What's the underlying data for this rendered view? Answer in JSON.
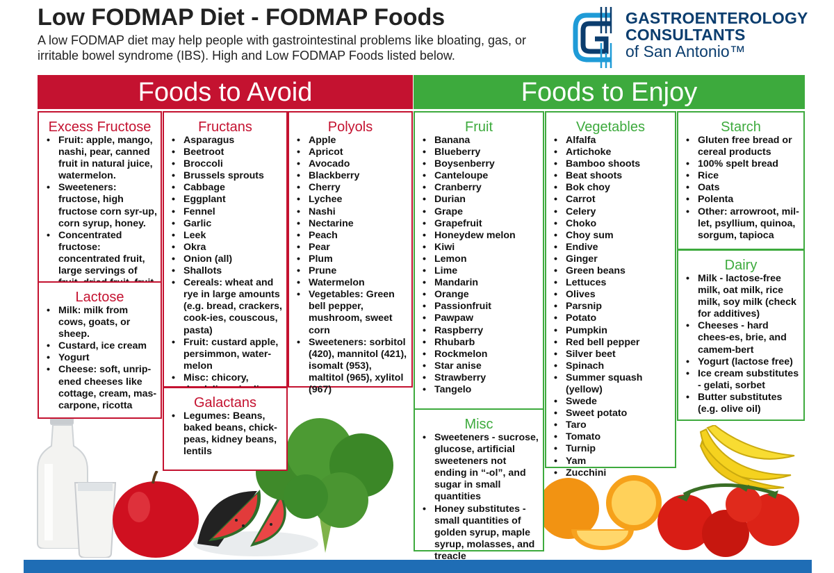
{
  "header": {
    "title": "Low FODMAP Diet - FODMAP Foods",
    "subtitle": "A low FODMAP diet may help people with gastrointestinal problems like bloating, gas, or irritable bowel syndrome (IBS). High and Low FODMAP Foods listed below."
  },
  "logo": {
    "line1": "GASTROENTEROLOGY",
    "line2": "CONSULTANTS",
    "line3": "of San Antonio™"
  },
  "avoid": {
    "heading": "Foods to Avoid",
    "fructose": {
      "title": "Excess Fructose",
      "items": [
        "Fruit: apple, mango, nashi, pear, canned fruit in natural juice, watermelon.",
        "Sweeteners: fructose, high fructose corn syr-up, corn syrup, honey.",
        "Concentrated fructose: concentrated fruit, large servings of fruit, dried fruit, fruit juice."
      ]
    },
    "lactose": {
      "title": "Lactose",
      "items": [
        "Milk: milk from cows, goats, or sheep.",
        "Custard, ice cream",
        "Yogurt",
        "Cheese: soft, unrip-ened cheeses like cottage, cream, mas-carpone, ricotta"
      ]
    },
    "fructans": {
      "title": "Fructans",
      "items": [
        "Asparagus",
        "Beetroot",
        "Broccoli",
        "Brussels sprouts",
        "Cabbage",
        "Eggplant",
        "Fennel",
        "Garlic",
        "Leek",
        "Okra",
        "Onion (all)",
        "Shallots",
        "Cereals: wheat and rye in large amounts (e.g. bread, crackers, cook-ies, couscous, pasta)",
        "Fruit: custard apple, persimmon, water-melon",
        "Misc: chicory, dandeli-on, inulin"
      ]
    },
    "galactans": {
      "title": "Galactans",
      "items": [
        "Legumes: Beans, baked beans, chick-peas, kidney beans, lentils"
      ]
    },
    "polyols": {
      "title": "Polyols",
      "items": [
        "Apple",
        "Apricot",
        "Avocado",
        "Blackberry",
        "Cherry",
        "Lychee",
        "Nashi",
        "Nectarine",
        "Peach",
        "Pear",
        "Plum",
        "Prune",
        "Watermelon",
        "Vegetables: Green bell pepper, mushroom, sweet corn",
        "Sweeteners: sorbitol (420), mannitol (421), isomalt (953), maltitol (965), xylitol (967)"
      ]
    }
  },
  "enjoy": {
    "heading": "Foods to Enjoy",
    "fruit": {
      "title": "Fruit",
      "items": [
        "Banana",
        "Blueberry",
        "Boysenberry",
        "Canteloupe",
        "Cranberry",
        "Durian",
        "Grape",
        "Grapefruit",
        "Honeydew melon",
        "Kiwi",
        "Lemon",
        "Lime",
        "Mandarin",
        "Orange",
        "Passionfruit",
        "Pawpaw",
        "Raspberry",
        "Rhubarb",
        "Rockmelon",
        "Star anise",
        "Strawberry",
        "Tangelo"
      ]
    },
    "misc": {
      "title": "Misc",
      "items": [
        "Sweeteners - sucrose, glucose, artificial sweeteners not ending in “-ol”, and sugar in small quantities",
        "Honey substitutes - small quantities of golden syrup, maple syrup, molasses, and treacle"
      ]
    },
    "vegetables": {
      "title": "Vegetables",
      "items": [
        "Alfalfa",
        "Artichoke",
        "Bamboo shoots",
        "Beat shoots",
        "Bok choy",
        "Carrot",
        "Celery",
        "Choko",
        "Choy sum",
        "Endive",
        "Ginger",
        "Green beans",
        "Lettuces",
        "Olives",
        "Parsnip",
        "Potato",
        "Pumpkin",
        "Red bell pepper",
        "Silver beet",
        "Spinach",
        "Summer squash (yellow)",
        "Swede",
        "Sweet potato",
        "Taro",
        "Tomato",
        "Turnip",
        "Yam",
        "Zucchini"
      ]
    },
    "starch": {
      "title": "Starch",
      "items": [
        "Gluten free bread or cereal products",
        "100% spelt bread",
        "Rice",
        "Oats",
        "Polenta",
        "Other: arrowroot, mil-let, psyllium, quinoa, sorgum, tapioca"
      ]
    },
    "dairy": {
      "title": "Dairy",
      "items": [
        "Milk - lactose-free milk, oat milk, rice milk, soy milk (check for additives)",
        "Cheeses - hard chees-es, brie, and camem-bert",
        "Yogurt (lactose free)",
        "Ice cream substitutes - gelati, sorbet",
        "Butter substitutes (e.g. olive oil)"
      ]
    }
  },
  "colors": {
    "avoid": "#c41230",
    "enjoy": "#3daa3d",
    "brand": "#0b3d6e",
    "footer": "#1f6db5"
  }
}
